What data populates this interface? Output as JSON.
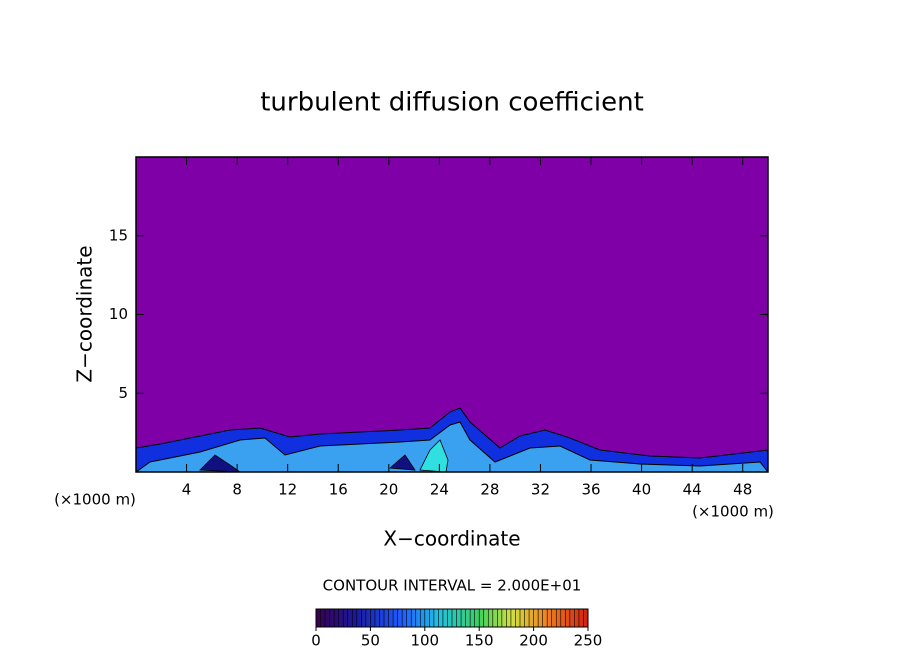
{
  "chart_data": {
    "type": "contour",
    "title": "turbulent diffusion coefficient",
    "xlabel": "X−coordinate",
    "ylabel": "Z−coordinate",
    "x_unit": "(×1000 m)",
    "xlim": [
      0,
      50
    ],
    "xticks": [
      4,
      8,
      12,
      16,
      20,
      24,
      28,
      32,
      36,
      40,
      44,
      48
    ],
    "ylim": [
      0,
      20
    ],
    "yticks": [
      5,
      10,
      15
    ],
    "contour_interval": "CONTOUR INTERVAL = 2.000E+01",
    "colorbar": {
      "lim": [
        0,
        250
      ],
      "ticks": [
        0,
        50,
        100,
        150,
        200,
        250
      ]
    }
  }
}
